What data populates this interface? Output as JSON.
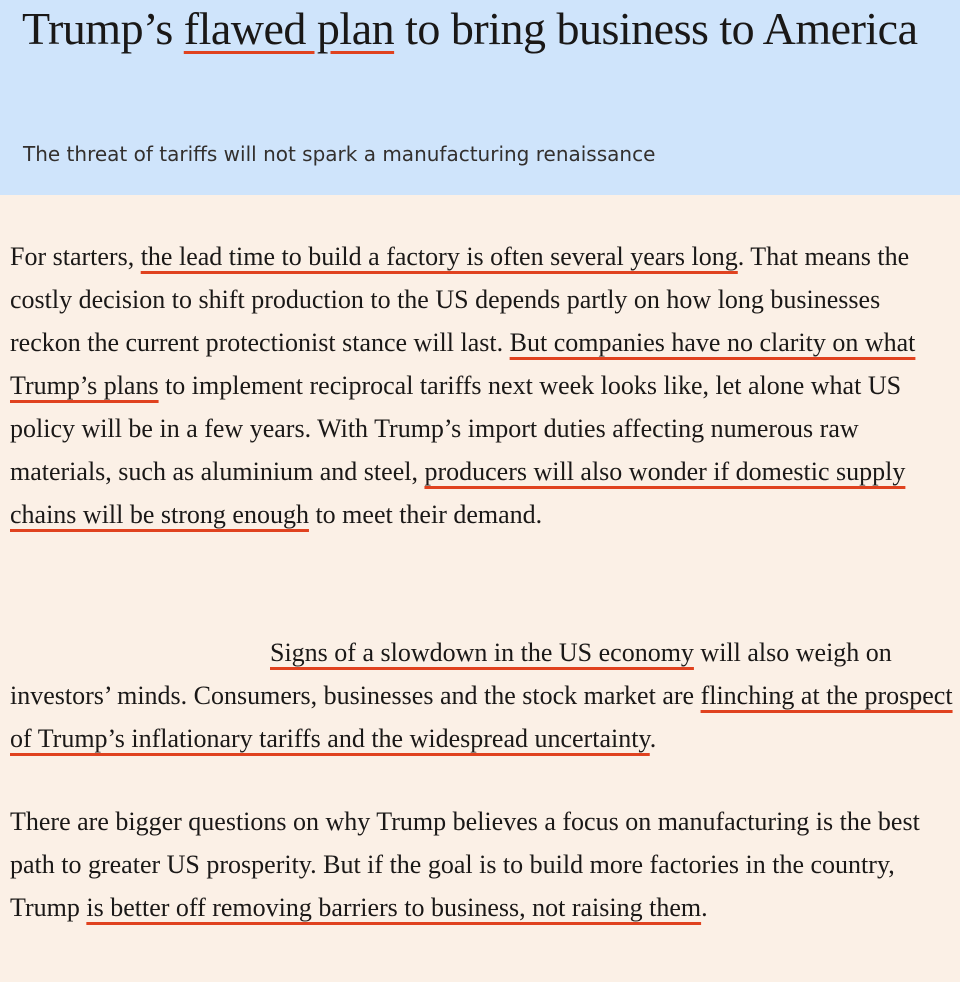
{
  "colors": {
    "header_background": "#cfe4fb",
    "page_background": "#fbf0e6",
    "highlight_underline": "#e0421f"
  },
  "headline": {
    "before": "Trump’s ",
    "highlight": "flawed plan",
    "after": " to bring business to America"
  },
  "standfirst": "The threat of tariffs will not spark a manufacturing renaissance",
  "paragraphs": [
    {
      "segments": [
        {
          "text": "For starters, ",
          "highlight": false
        },
        {
          "text": "the lead time to build a factory is often several years long",
          "highlight": true
        },
        {
          "text": ". That means the costly decision to shift production to the US depends partly on how long businesses reckon the current protectionist stance will last. ",
          "highlight": false
        },
        {
          "text": "But companies have no clarity on what Trump’s plans",
          "highlight": true
        },
        {
          "text": " to implement reciprocal tariffs next week looks like, let alone what US policy will be in a few years. With Trump’s import duties affecting numerous raw materials, such as aluminium and steel, ",
          "highlight": false
        },
        {
          "text": "producers will also wonder if domestic supply chains will be strong enough",
          "highlight": true
        },
        {
          "text": " to meet their demand.",
          "highlight": false
        }
      ]
    },
    {
      "segments": [
        {
          "text": "Signs of a slowdown in the US economy",
          "highlight": true
        },
        {
          "text": " will also weigh on investors’ minds. Consumers, businesses and the stock market are ",
          "highlight": false
        },
        {
          "text": "flinching at the prospect of Trump’s inflationary tariffs and the widespread uncertainty",
          "highlight": true
        },
        {
          "text": ".",
          "highlight": false
        }
      ]
    },
    {
      "segments": [
        {
          "text": "There are bigger questions on why Trump believes a focus on manufacturing is the best path to greater US prosperity. But if the goal is to build more factories in the country, Trump ",
          "highlight": false
        },
        {
          "text": "is better off removing barriers to business, not raising them",
          "highlight": true
        },
        {
          "text": ".",
          "highlight": false
        }
      ]
    }
  ]
}
